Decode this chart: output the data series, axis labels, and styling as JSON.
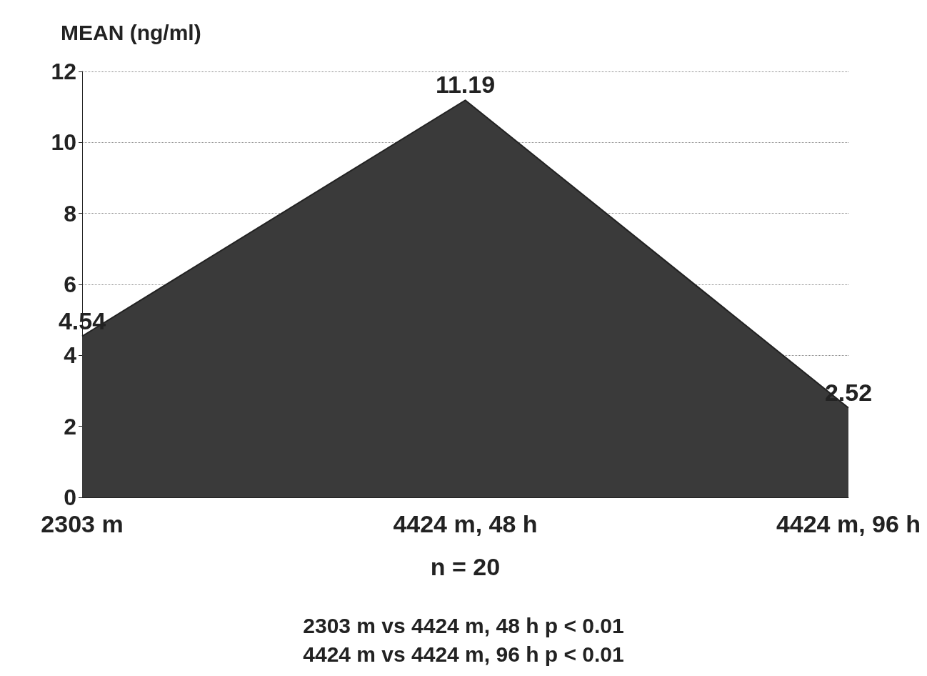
{
  "chart_data": {
    "type": "area",
    "ylabel": "MEAN (ng/ml)",
    "xlabel": "n = 20",
    "categories": [
      "2303 m",
      "4424 m, 48 h",
      "4424 m, 96 h"
    ],
    "values": [
      4.54,
      11.19,
      2.52
    ],
    "color": "#3a3a3a",
    "ylim": [
      0,
      12
    ],
    "yticks": [
      0,
      2,
      4,
      6,
      8,
      10,
      12
    ],
    "grid": "y",
    "data_labels": true,
    "annotations": [
      "2303 m vs 4424 m, 48 h p < 0.01",
      "4424 m vs 4424 m, 96 h p < 0.01"
    ]
  }
}
